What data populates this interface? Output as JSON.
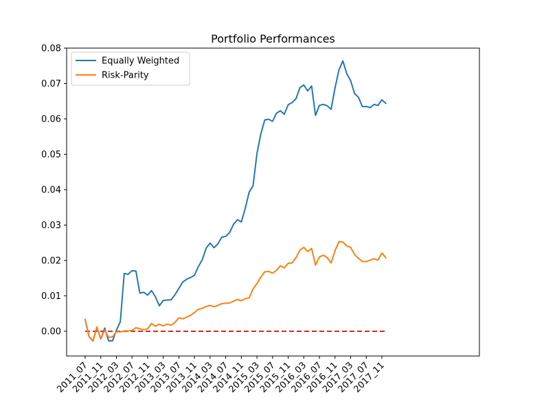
{
  "chart_data": {
    "type": "line",
    "title": "Portfolio Performances",
    "xlabel": "",
    "ylabel": "",
    "ylim": [
      -0.007,
      0.08
    ],
    "yticks": [
      0.0,
      0.01,
      0.02,
      0.03,
      0.04,
      0.05,
      0.06,
      0.07,
      0.08
    ],
    "ytick_labels": [
      "0.00",
      "0.01",
      "0.02",
      "0.03",
      "0.04",
      "0.05",
      "0.06",
      "0.07",
      "0.08"
    ],
    "categories": [
      "2011_07",
      "2011_08",
      "2011_09",
      "2011_10",
      "2011_11",
      "2011_12",
      "2012_01",
      "2012_02",
      "2012_03",
      "2012_04",
      "2012_05",
      "2012_06",
      "2012_07",
      "2012_08",
      "2012_09",
      "2012_10",
      "2012_11",
      "2012_12",
      "2013_01",
      "2013_02",
      "2013_03",
      "2013_04",
      "2013_05",
      "2013_06",
      "2013_07",
      "2013_08",
      "2013_09",
      "2013_10",
      "2013_11",
      "2013_12",
      "2014_01",
      "2014_02",
      "2014_03",
      "2014_04",
      "2014_05",
      "2014_06",
      "2014_07",
      "2014_08",
      "2014_09",
      "2014_10",
      "2014_11",
      "2014_12",
      "2015_01",
      "2015_02",
      "2015_03",
      "2015_04",
      "2015_05",
      "2015_06",
      "2015_07",
      "2015_08",
      "2015_09",
      "2015_10",
      "2015_11",
      "2015_12",
      "2016_01",
      "2016_02",
      "2016_03",
      "2016_04",
      "2016_05",
      "2016_06",
      "2016_07",
      "2016_08",
      "2016_09",
      "2016_10",
      "2016_11",
      "2016_12",
      "2017_01",
      "2017_02",
      "2017_03",
      "2017_04",
      "2017_05",
      "2017_06",
      "2017_07",
      "2017_08",
      "2017_09",
      "2017_10",
      "2017_11",
      "2017_12"
    ],
    "xtick_labels": [
      "2011_07",
      "2011_11",
      "2012_03",
      "2012_07",
      "2012_11",
      "2013_03",
      "2013_07",
      "2013_11",
      "2014_03",
      "2014_07",
      "2014_11",
      "2015_03",
      "2015_07",
      "2015_11",
      "2016_03",
      "2016_07",
      "2016_11",
      "2017_03",
      "2017_07",
      "2017_11"
    ],
    "series": [
      {
        "name": "Equally Weighted",
        "color": "#1f77b4",
        "values": [
          0.0033,
          -0.0015,
          -0.0027,
          0.0012,
          -0.0022,
          0.0009,
          -0.0027,
          -0.0027,
          0.0003,
          0.0027,
          0.0163,
          0.0161,
          0.0171,
          0.017,
          0.0108,
          0.011,
          0.0102,
          0.0115,
          0.0097,
          0.0072,
          0.0087,
          0.0088,
          0.0089,
          0.0103,
          0.0121,
          0.0139,
          0.0147,
          0.0152,
          0.0158,
          0.0183,
          0.0202,
          0.0235,
          0.0249,
          0.0236,
          0.0247,
          0.0266,
          0.0268,
          0.0279,
          0.0302,
          0.0315,
          0.0309,
          0.0347,
          0.0393,
          0.0411,
          0.0502,
          0.0558,
          0.0597,
          0.0599,
          0.0593,
          0.0616,
          0.0623,
          0.0613,
          0.064,
          0.0646,
          0.0657,
          0.0688,
          0.0696,
          0.0679,
          0.0693,
          0.061,
          0.0638,
          0.0641,
          0.0637,
          0.0627,
          0.0688,
          0.0738,
          0.0764,
          0.0728,
          0.0708,
          0.0672,
          0.0661,
          0.0635,
          0.0635,
          0.0632,
          0.0641,
          0.0638,
          0.0654,
          0.0644
        ]
      },
      {
        "name": "Risk-Parity",
        "color": "#ff7f0e",
        "values": [
          0.0033,
          -0.0015,
          -0.0028,
          0.0012,
          -0.0021,
          0.0003,
          -0.0017,
          -0.0016,
          -0.0001,
          -0.0002,
          0.0001,
          0.0001,
          0.0002,
          0.001,
          0.0007,
          0.0004,
          0.0007,
          0.0022,
          0.0014,
          0.002,
          0.0015,
          0.002,
          0.0017,
          0.0025,
          0.0038,
          0.0035,
          0.004,
          0.0045,
          0.0053,
          0.0062,
          0.0065,
          0.007,
          0.0073,
          0.0069,
          0.0073,
          0.0078,
          0.0079,
          0.008,
          0.0085,
          0.009,
          0.0086,
          0.0092,
          0.0094,
          0.0119,
          0.0135,
          0.0153,
          0.0168,
          0.0169,
          0.0164,
          0.0172,
          0.0185,
          0.0179,
          0.0192,
          0.0193,
          0.0208,
          0.0229,
          0.0237,
          0.0225,
          0.0234,
          0.0187,
          0.021,
          0.0215,
          0.0208,
          0.0193,
          0.0228,
          0.0253,
          0.0252,
          0.0241,
          0.0237,
          0.0217,
          0.0206,
          0.0197,
          0.0197,
          0.0201,
          0.0205,
          0.0201,
          0.0221,
          0.0208
        ]
      }
    ],
    "reference_line": {
      "y": 0.0,
      "color": "#d62728",
      "style": "dashed"
    },
    "legend": {
      "position": "top-left",
      "entries": [
        "Equally Weighted",
        "Risk-Parity"
      ]
    },
    "grid": false
  }
}
